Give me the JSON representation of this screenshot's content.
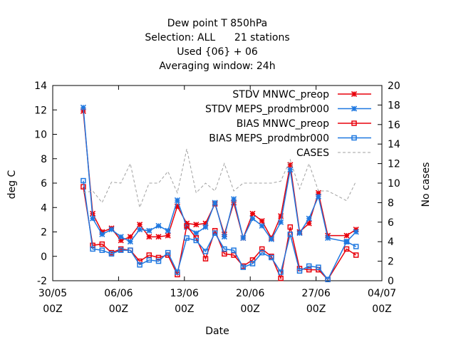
{
  "chart_data": {
    "type": "line",
    "title_lines": [
      "Dew point T 850hPa",
      "Selection: ALL      21 stations",
      "Used {06} + 06",
      "Averaging window: 24h"
    ],
    "xlabel": "Date",
    "ylabel": "deg C",
    "y2label": "No cases",
    "xlim": [
      "2023-05-30T00:00",
      "2023-07-04T00:00"
    ],
    "ylim": [
      -2,
      14
    ],
    "y2lim": [
      0,
      20
    ],
    "x_ticks": [
      {
        "date": "2023-05-30T00:00",
        "line1": "30/05",
        "line2": "00Z"
      },
      {
        "date": "2023-06-06T00:00",
        "line1": "06/06",
        "line2": "00Z"
      },
      {
        "date": "2023-06-13T00:00",
        "line1": "13/06",
        "line2": "00Z"
      },
      {
        "date": "2023-06-20T00:00",
        "line1": "20/06",
        "line2": "00Z"
      },
      {
        "date": "2023-06-27T00:00",
        "line1": "27/06",
        "line2": "00Z"
      },
      {
        "date": "2023-07-04T00:00",
        "line1": "04/07",
        "line2": "00Z"
      }
    ],
    "y_ticks": [
      -2,
      0,
      2,
      4,
      6,
      8,
      10,
      12,
      14
    ],
    "y2_ticks": [
      0,
      2,
      4,
      6,
      8,
      10,
      12,
      14,
      16,
      18,
      20
    ],
    "grid": false,
    "legend_position": "top-right",
    "series": [
      {
        "name": "STDV MNWC_preop",
        "axis": "y",
        "color": "#e8000b",
        "marker": "star",
        "dash": "",
        "points": [
          [
            "2023-06-02T06:00",
            11.9
          ],
          [
            "2023-06-03T06:00",
            3.5
          ],
          [
            "2023-06-04T06:00",
            2.0
          ],
          [
            "2023-06-05T06:00",
            2.3
          ],
          [
            "2023-06-06T06:00",
            1.3
          ],
          [
            "2023-06-07T06:00",
            1.6
          ],
          [
            "2023-06-08T06:00",
            2.6
          ],
          [
            "2023-06-09T06:00",
            1.6
          ],
          [
            "2023-06-10T06:00",
            1.6
          ],
          [
            "2023-06-11T06:00",
            1.7
          ],
          [
            "2023-06-12T06:00",
            4.1
          ],
          [
            "2023-06-13T06:00",
            2.7
          ],
          [
            "2023-06-14T06:00",
            2.6
          ],
          [
            "2023-06-15T06:00",
            2.7
          ],
          [
            "2023-06-16T06:00",
            4.3
          ],
          [
            "2023-06-17T06:00",
            1.8
          ],
          [
            "2023-06-18T06:00",
            4.4
          ],
          [
            "2023-06-19T06:00",
            1.5
          ],
          [
            "2023-06-20T06:00",
            3.5
          ],
          [
            "2023-06-21T06:00",
            2.9
          ],
          [
            "2023-06-22T06:00",
            1.5
          ],
          [
            "2023-06-23T06:00",
            3.3
          ],
          [
            "2023-06-24T06:00",
            7.5
          ],
          [
            "2023-06-25T06:00",
            2.0
          ],
          [
            "2023-06-26T06:00",
            2.7
          ],
          [
            "2023-06-27T06:00",
            5.2
          ],
          [
            "2023-06-28T06:00",
            1.7
          ],
          [
            "2023-06-30T06:00",
            1.7
          ],
          [
            "2023-07-01T06:00",
            2.2
          ]
        ]
      },
      {
        "name": "STDV MEPS_prodmbr000",
        "axis": "y",
        "color": "#1f78e0",
        "marker": "star",
        "dash": "",
        "points": [
          [
            "2023-06-02T06:00",
            12.2
          ],
          [
            "2023-06-03T06:00",
            3.1
          ],
          [
            "2023-06-04T06:00",
            1.8
          ],
          [
            "2023-06-05T06:00",
            2.2
          ],
          [
            "2023-06-06T06:00",
            1.6
          ],
          [
            "2023-06-07T06:00",
            1.2
          ],
          [
            "2023-06-08T06:00",
            2.2
          ],
          [
            "2023-06-09T06:00",
            2.1
          ],
          [
            "2023-06-10T06:00",
            2.5
          ],
          [
            "2023-06-11T06:00",
            2.1
          ],
          [
            "2023-06-12T06:00",
            4.6
          ],
          [
            "2023-06-13T06:00",
            2.4
          ],
          [
            "2023-06-14T06:00",
            1.9
          ],
          [
            "2023-06-15T06:00",
            2.4
          ],
          [
            "2023-06-16T06:00",
            4.4
          ],
          [
            "2023-06-17T06:00",
            1.6
          ],
          [
            "2023-06-18T06:00",
            4.7
          ],
          [
            "2023-06-19T06:00",
            1.5
          ],
          [
            "2023-06-20T06:00",
            3.1
          ],
          [
            "2023-06-21T06:00",
            2.5
          ],
          [
            "2023-06-22T06:00",
            1.4
          ],
          [
            "2023-06-23T06:00",
            2.8
          ],
          [
            "2023-06-24T06:00",
            7.1
          ],
          [
            "2023-06-25T06:00",
            1.9
          ],
          [
            "2023-06-26T06:00",
            3.1
          ],
          [
            "2023-06-27T06:00",
            4.9
          ],
          [
            "2023-06-28T06:00",
            1.5
          ],
          [
            "2023-06-30T06:00",
            1.2
          ],
          [
            "2023-07-01T06:00",
            2.0
          ]
        ]
      },
      {
        "name": "BIAS MNWC_preop",
        "axis": "y",
        "color": "#e8000b",
        "marker": "square",
        "dash": "",
        "points": [
          [
            "2023-06-02T06:00",
            5.7
          ],
          [
            "2023-06-03T06:00",
            0.9
          ],
          [
            "2023-06-04T06:00",
            1.0
          ],
          [
            "2023-06-05T06:00",
            0.3
          ],
          [
            "2023-06-06T06:00",
            0.6
          ],
          [
            "2023-06-07T06:00",
            0.5
          ],
          [
            "2023-06-08T06:00",
            -0.4
          ],
          [
            "2023-06-09T06:00",
            0.1
          ],
          [
            "2023-06-10T06:00",
            -0.1
          ],
          [
            "2023-06-11T06:00",
            0.1
          ],
          [
            "2023-06-12T06:00",
            -1.5
          ],
          [
            "2023-06-13T06:00",
            2.5
          ],
          [
            "2023-06-14T06:00",
            1.5
          ],
          [
            "2023-06-15T06:00",
            -0.2
          ],
          [
            "2023-06-16T06:00",
            2.1
          ],
          [
            "2023-06-17T06:00",
            0.2
          ],
          [
            "2023-06-18T06:00",
            0.1
          ],
          [
            "2023-06-19T06:00",
            -0.8
          ],
          [
            "2023-06-20T06:00",
            -0.3
          ],
          [
            "2023-06-21T06:00",
            0.6
          ],
          [
            "2023-06-22T06:00",
            0.0
          ],
          [
            "2023-06-23T06:00",
            -1.8
          ],
          [
            "2023-06-24T06:00",
            2.4
          ],
          [
            "2023-06-25T06:00",
            -1.0
          ],
          [
            "2023-06-26T06:00",
            -1.1
          ],
          [
            "2023-06-27T06:00",
            -1.1
          ],
          [
            "2023-06-28T06:00",
            -1.9
          ],
          [
            "2023-06-30T06:00",
            0.6
          ],
          [
            "2023-07-01T06:00",
            0.1
          ]
        ]
      },
      {
        "name": "BIAS MEPS_prodmbr000",
        "axis": "y",
        "color": "#1f78e0",
        "marker": "square",
        "dash": "",
        "points": [
          [
            "2023-06-02T06:00",
            6.2
          ],
          [
            "2023-06-03T06:00",
            0.6
          ],
          [
            "2023-06-04T06:00",
            0.5
          ],
          [
            "2023-06-05T06:00",
            0.2
          ],
          [
            "2023-06-06T06:00",
            0.5
          ],
          [
            "2023-06-07T06:00",
            0.5
          ],
          [
            "2023-06-08T06:00",
            -0.7
          ],
          [
            "2023-06-09T06:00",
            -0.3
          ],
          [
            "2023-06-10T06:00",
            -0.4
          ],
          [
            "2023-06-11T06:00",
            0.3
          ],
          [
            "2023-06-12T06:00",
            -1.3
          ],
          [
            "2023-06-13T06:00",
            1.5
          ],
          [
            "2023-06-14T06:00",
            1.3
          ],
          [
            "2023-06-15T06:00",
            0.4
          ],
          [
            "2023-06-16T06:00",
            1.9
          ],
          [
            "2023-06-17T06:00",
            0.6
          ],
          [
            "2023-06-18T06:00",
            0.5
          ],
          [
            "2023-06-19T06:00",
            -0.9
          ],
          [
            "2023-06-20T06:00",
            -0.6
          ],
          [
            "2023-06-21T06:00",
            0.3
          ],
          [
            "2023-06-22T06:00",
            -0.1
          ],
          [
            "2023-06-23T06:00",
            -1.3
          ],
          [
            "2023-06-24T06:00",
            1.8
          ],
          [
            "2023-06-25T06:00",
            -1.2
          ],
          [
            "2023-06-26T06:00",
            -0.8
          ],
          [
            "2023-06-27T06:00",
            -0.9
          ],
          [
            "2023-06-28T06:00",
            -1.9
          ],
          [
            "2023-06-30T06:00",
            1.2
          ],
          [
            "2023-07-01T06:00",
            0.8
          ]
        ]
      },
      {
        "name": "CASES",
        "axis": "y2",
        "color": "#a0a0a0",
        "marker": "none",
        "dash": "4,3",
        "points": [
          [
            "2023-06-02T06:00",
            9.0
          ],
          [
            "2023-06-03T06:00",
            9.2
          ],
          [
            "2023-06-04T06:00",
            8.0
          ],
          [
            "2023-06-05T06:00",
            10.1
          ],
          [
            "2023-06-06T06:00",
            10.0
          ],
          [
            "2023-06-07T06:00",
            12.0
          ],
          [
            "2023-06-08T06:00",
            7.5
          ],
          [
            "2023-06-09T06:00",
            10.0
          ],
          [
            "2023-06-10T06:00",
            10.0
          ],
          [
            "2023-06-11T06:00",
            11.2
          ],
          [
            "2023-06-12T06:00",
            9.0
          ],
          [
            "2023-06-13T06:00",
            13.5
          ],
          [
            "2023-06-14T06:00",
            9.0
          ],
          [
            "2023-06-15T06:00",
            10.0
          ],
          [
            "2023-06-16T06:00",
            9.2
          ],
          [
            "2023-06-17T06:00",
            12.0
          ],
          [
            "2023-06-18T06:00",
            9.2
          ],
          [
            "2023-06-19T06:00",
            10.0
          ],
          [
            "2023-06-20T06:00",
            10.0
          ],
          [
            "2023-06-21T06:00",
            10.0
          ],
          [
            "2023-06-22T06:00",
            10.0
          ],
          [
            "2023-06-23T06:00",
            10.2
          ],
          [
            "2023-06-24T06:00",
            12.4
          ],
          [
            "2023-06-25T06:00",
            9.4
          ],
          [
            "2023-06-26T06:00",
            12.0
          ],
          [
            "2023-06-27T06:00",
            9.2
          ],
          [
            "2023-06-28T06:00",
            9.2
          ],
          [
            "2023-06-30T06:00",
            8.2
          ],
          [
            "2023-07-01T06:00",
            10.2
          ]
        ]
      }
    ]
  }
}
